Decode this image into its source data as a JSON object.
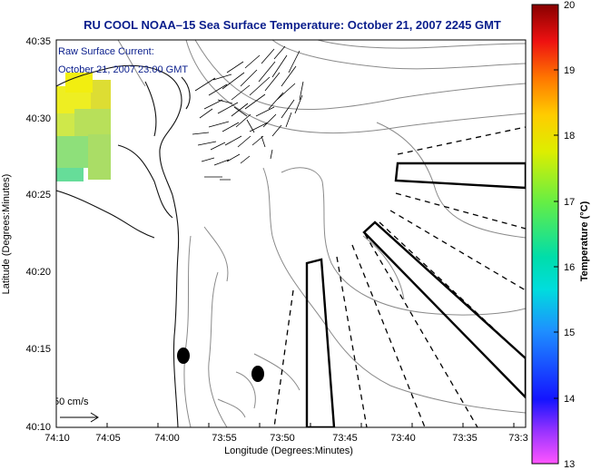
{
  "title": "RU COOL  NOAA–15  Sea Surface Temperature:  October 21, 2007 2245 GMT",
  "current_note": {
    "line1": "Raw Surface Current:",
    "line2": "October 21, 2007 23:00 GMT"
  },
  "axes": {
    "xlabel": "Longitude (Degrees:Minutes)",
    "ylabel": "Latitude (Degrees:Minutes)",
    "xticks": [
      "74:10",
      "74:05",
      "74:00",
      "73:55",
      "73:50",
      "73:45",
      "73:40",
      "73:35",
      "73:3"
    ],
    "yticks": [
      "40:35",
      "40:30",
      "40:25",
      "40:20",
      "40:15",
      "40:10"
    ]
  },
  "colorbar": {
    "label": "Temperature (°C)",
    "ticks": [
      "20",
      "19",
      "18",
      "17",
      "16",
      "15",
      "14",
      "13"
    ],
    "min": 13,
    "max": 20
  },
  "scale_vector": {
    "label": "50 cm/s"
  },
  "colors": {
    "title": "#0a1e8c",
    "land": "#ffffff",
    "contour": "#8a8a8a"
  }
}
